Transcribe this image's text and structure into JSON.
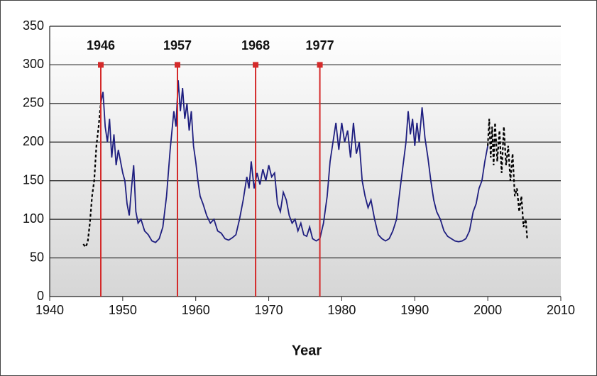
{
  "chart_data": {
    "type": "line",
    "x_label": "Year",
    "xlim": [
      1940,
      2010
    ],
    "xticks": [
      1940,
      1950,
      1960,
      1970,
      1980,
      1990,
      2000,
      2010
    ],
    "ylim": [
      0,
      350
    ],
    "yticks": [
      0,
      50,
      100,
      150,
      200,
      250,
      300,
      350
    ],
    "grid": true,
    "series": [
      {
        "color": "#000000",
        "dashed": true,
        "x": [
          1944.6,
          1944.9,
          1945.2,
          1945.5,
          1945.8,
          1946.1,
          1946.4,
          1946.7,
          1947.0
        ],
        "values": [
          68,
          64,
          70,
          95,
          130,
          150,
          195,
          220,
          250
        ]
      },
      {
        "color": "#1f1f80",
        "dashed": false,
        "x": [
          1947.0,
          1947.3,
          1947.6,
          1947.9,
          1948.2,
          1948.5,
          1948.8,
          1949.1,
          1949.4,
          1949.7,
          1950.0,
          1950.3,
          1950.6,
          1950.9,
          1951.2,
          1951.5,
          1951.8,
          1952.1,
          1952.5,
          1953.0,
          1953.5,
          1954.0,
          1954.5,
          1955.0,
          1955.5,
          1956.0,
          1956.5,
          1957.0,
          1957.3,
          1957.6,
          1957.9,
          1958.2,
          1958.5,
          1958.8,
          1959.1,
          1959.4,
          1959.7,
          1960.0,
          1960.3,
          1960.6,
          1961.0,
          1961.5,
          1962.0,
          1962.5,
          1963.0,
          1963.5,
          1964.0,
          1964.5,
          1965.0,
          1965.5,
          1966.0,
          1966.5,
          1967.0,
          1967.3,
          1967.6,
          1968.0,
          1968.4,
          1968.8,
          1969.2,
          1969.6,
          1970.0,
          1970.4,
          1970.8,
          1971.2,
          1971.6,
          1972.0,
          1972.4,
          1972.8,
          1973.2,
          1973.6,
          1974.0,
          1974.4,
          1974.8,
          1975.2,
          1975.6,
          1976.0,
          1976.5,
          1977.0,
          1977.5,
          1978.0,
          1978.4,
          1978.8,
          1979.2,
          1979.6,
          1980.0,
          1980.4,
          1980.8,
          1981.2,
          1981.6,
          1982.0,
          1982.4,
          1982.8,
          1983.2,
          1983.6,
          1984.0,
          1984.5,
          1985.0,
          1985.5,
          1986.0,
          1986.5,
          1987.0,
          1987.5,
          1988.0,
          1988.4,
          1988.8,
          1989.1,
          1989.4,
          1989.7,
          1990.0,
          1990.3,
          1990.6,
          1991.0,
          1991.4,
          1991.8,
          1992.2,
          1992.6,
          1993.0,
          1993.5,
          1994.0,
          1994.5,
          1995.0,
          1995.5,
          1996.0,
          1996.5,
          1997.0,
          1997.5,
          1998.0,
          1998.4,
          1998.8,
          1999.2,
          1999.6,
          2000.0
        ],
        "values": [
          250,
          265,
          220,
          200,
          230,
          180,
          210,
          170,
          190,
          175,
          160,
          150,
          120,
          105,
          140,
          170,
          110,
          95,
          100,
          85,
          80,
          72,
          70,
          75,
          90,
          130,
          190,
          240,
          220,
          280,
          240,
          270,
          230,
          250,
          215,
          240,
          195,
          175,
          150,
          130,
          120,
          105,
          95,
          100,
          85,
          82,
          75,
          73,
          76,
          80,
          100,
          125,
          155,
          140,
          175,
          140,
          160,
          145,
          165,
          150,
          170,
          155,
          160,
          120,
          110,
          135,
          125,
          105,
          95,
          100,
          85,
          95,
          80,
          78,
          90,
          75,
          72,
          75,
          95,
          130,
          175,
          200,
          225,
          190,
          225,
          200,
          215,
          180,
          225,
          185,
          200,
          150,
          130,
          115,
          125,
          100,
          80,
          75,
          72,
          75,
          85,
          100,
          140,
          170,
          200,
          240,
          210,
          230,
          195,
          225,
          200,
          245,
          205,
          180,
          150,
          125,
          110,
          100,
          85,
          78,
          75,
          72,
          71,
          72,
          75,
          85,
          110,
          120,
          140,
          150,
          175,
          195
        ]
      },
      {
        "color": "#000000",
        "dashed": true,
        "x": [
          2000.0,
          2000.2,
          2000.4,
          2000.6,
          2000.8,
          2001.0,
          2001.3,
          2001.6,
          2001.9,
          2002.2,
          2002.5,
          2002.8,
          2003.1,
          2003.4,
          2003.7,
          2004.0,
          2004.3,
          2004.6,
          2004.9,
          2005.2,
          2005.4
        ],
        "values": [
          195,
          230,
          180,
          220,
          170,
          225,
          175,
          215,
          160,
          220,
          170,
          195,
          150,
          185,
          130,
          140,
          110,
          130,
          90,
          100,
          75
        ]
      }
    ],
    "annotations": [
      {
        "label": "1946",
        "x": 1947.0,
        "y": 300
      },
      {
        "label": "1957",
        "x": 1957.5,
        "y": 300
      },
      {
        "label": "1968",
        "x": 1968.2,
        "y": 300
      },
      {
        "label": "1977",
        "x": 1977.0,
        "y": 300
      }
    ],
    "annotation_color": "#d42a2a"
  }
}
